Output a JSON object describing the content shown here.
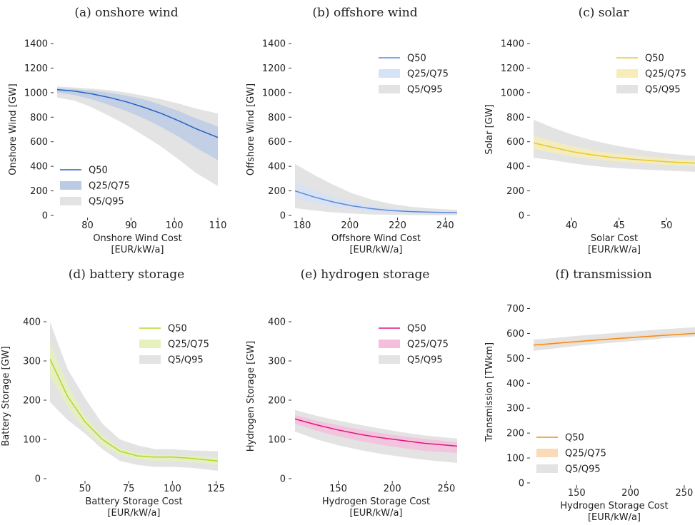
{
  "chart_data": [
    {
      "type": "area",
      "title": "(a) onshore wind",
      "xlabel": [
        "Onshore Wind Cost",
        "[EUR/kW/a]"
      ],
      "ylabel": "Onshore Wind [GW]",
      "xlim": [
        73,
        110
      ],
      "ylim": [
        0,
        1400
      ],
      "xticks": [
        80,
        90,
        100,
        110
      ],
      "yticks": [
        0,
        200,
        400,
        600,
        800,
        1000,
        1200,
        1400
      ],
      "legend_loc": "lower-left",
      "color": "#2461c6",
      "band_inner": "#bccbe4",
      "band_outer": "#e3e3e3",
      "x": [
        73,
        77,
        81,
        85,
        89,
        93,
        97,
        101,
        105,
        110
      ],
      "q5": [
        960,
        935,
        880,
        810,
        735,
        650,
        560,
        455,
        345,
        240
      ],
      "q25": [
        1000,
        980,
        945,
        900,
        850,
        790,
        720,
        640,
        550,
        450
      ],
      "q50": [
        1025,
        1012,
        990,
        960,
        925,
        880,
        830,
        770,
        705,
        635
      ],
      "q75": [
        1035,
        1028,
        1018,
        1000,
        975,
        945,
        900,
        850,
        790,
        725
      ],
      "q95": [
        1050,
        1042,
        1032,
        1020,
        1000,
        975,
        945,
        910,
        870,
        830
      ],
      "series": [
        {
          "name": "Q50"
        },
        {
          "name": "Q25/Q75"
        },
        {
          "name": "Q5/Q95"
        }
      ]
    },
    {
      "type": "area",
      "title": "(b) offshore wind",
      "xlabel": [
        "Offshore Wind Cost",
        "[EUR/kW/a]"
      ],
      "ylabel": "Offshore Wind [GW]",
      "xlim": [
        177,
        245
      ],
      "ylim": [
        0,
        1400
      ],
      "xticks": [
        180,
        200,
        220,
        240
      ],
      "yticks": [
        0,
        200,
        400,
        600,
        800,
        1000,
        1200,
        1400
      ],
      "legend_loc": "top-right",
      "color": "#5b8ad8",
      "band_inner": "#d6e2f5",
      "band_outer": "#e3e3e3",
      "x": [
        177,
        185,
        193,
        201,
        209,
        217,
        225,
        233,
        245
      ],
      "q5": [
        60,
        40,
        25,
        15,
        8,
        5,
        3,
        2,
        1
      ],
      "q25": [
        140,
        100,
        70,
        48,
        33,
        24,
        18,
        15,
        12
      ],
      "q50": [
        200,
        150,
        110,
        78,
        55,
        40,
        32,
        27,
        22
      ],
      "q75": [
        270,
        205,
        150,
        108,
        78,
        58,
        46,
        38,
        32
      ],
      "q95": [
        420,
        330,
        250,
        180,
        130,
        95,
        72,
        58,
        45
      ],
      "series": [
        {
          "name": "Q50"
        },
        {
          "name": "Q25/Q75"
        },
        {
          "name": "Q5/Q95"
        }
      ]
    },
    {
      "type": "area",
      "title": "(c) solar",
      "xlabel": [
        "Solar Cost",
        "[EUR/kW/a]"
      ],
      "ylabel": "Solar [GW]",
      "xlim": [
        36,
        53
      ],
      "ylim": [
        0,
        1400
      ],
      "xticks": [
        40,
        45,
        50
      ],
      "yticks": [
        0,
        200,
        400,
        600,
        800,
        1000,
        1200,
        1400
      ],
      "legend_loc": "top-right",
      "color": "#eac92a",
      "band_inner": "#f6edb8",
      "band_outer": "#e3e3e3",
      "x": [
        36,
        38,
        40,
        42,
        44,
        46,
        48,
        50,
        53
      ],
      "q5": [
        470,
        450,
        425,
        405,
        390,
        380,
        372,
        365,
        355
      ],
      "q25": [
        540,
        510,
        480,
        460,
        445,
        432,
        422,
        412,
        400
      ],
      "q50": [
        590,
        555,
        520,
        495,
        475,
        460,
        448,
        437,
        425
      ],
      "q75": [
        650,
        605,
        565,
        535,
        510,
        493,
        478,
        465,
        450
      ],
      "q95": [
        780,
        715,
        660,
        615,
        580,
        550,
        525,
        505,
        485
      ],
      "series": [
        {
          "name": "Q50"
        },
        {
          "name": "Q25/Q75"
        },
        {
          "name": "Q5/Q95"
        }
      ]
    },
    {
      "type": "area",
      "title": "(d) battery storage",
      "xlabel": [
        "Battery Storage Cost",
        "[EUR/kW/a]"
      ],
      "ylabel": "Battery Storage [GW]",
      "xlim": [
        30,
        126
      ],
      "ylim": [
        0,
        420
      ],
      "xticks": [
        50,
        75,
        100,
        125
      ],
      "yticks": [
        0,
        100,
        200,
        300,
        400
      ],
      "legend_loc": "top-right",
      "color": "#b2d829",
      "band_inner": "#e6f1bd",
      "band_outer": "#e3e3e3",
      "x": [
        30,
        40,
        50,
        60,
        70,
        80,
        90,
        100,
        110,
        126
      ],
      "q5": [
        195,
        150,
        115,
        75,
        45,
        35,
        30,
        30,
        28,
        20
      ],
      "q25": [
        260,
        185,
        125,
        85,
        60,
        50,
        45,
        45,
        42,
        35
      ],
      "q50": [
        305,
        210,
        145,
        100,
        70,
        58,
        55,
        55,
        52,
        45
      ],
      "q75": [
        345,
        240,
        160,
        110,
        78,
        65,
        60,
        60,
        58,
        55
      ],
      "q95": [
        400,
        280,
        205,
        140,
        100,
        85,
        75,
        75,
        72,
        70
      ],
      "series": [
        {
          "name": "Q50"
        },
        {
          "name": "Q25/Q75"
        },
        {
          "name": "Q5/Q95"
        }
      ]
    },
    {
      "type": "area",
      "title": "(e) hydrogen storage",
      "xlabel": [
        "Hydrogen Storage Cost",
        "[EUR/kW/a]"
      ],
      "ylabel": "Hydrogen Storage [GW]",
      "xlim": [
        110,
        260
      ],
      "ylim": [
        0,
        420
      ],
      "xticks": [
        150,
        200,
        250
      ],
      "yticks": [
        0,
        100,
        200,
        300,
        400
      ],
      "legend_loc": "top-right",
      "color": "#e0157d",
      "band_inner": "#f4bedc",
      "band_outer": "#e3e3e3",
      "x": [
        110,
        130,
        150,
        170,
        190,
        210,
        230,
        260
      ],
      "q5": [
        120,
        100,
        85,
        73,
        63,
        55,
        48,
        40
      ],
      "q25": [
        140,
        122,
        108,
        96,
        86,
        78,
        71,
        65
      ],
      "q50": [
        152,
        137,
        124,
        113,
        104,
        97,
        90,
        83
      ],
      "q75": [
        162,
        148,
        136,
        125,
        116,
        108,
        101,
        93
      ],
      "q95": [
        175,
        160,
        148,
        137,
        127,
        118,
        110,
        102
      ],
      "series": [
        {
          "name": "Q50"
        },
        {
          "name": "Q25/Q75"
        },
        {
          "name": "Q5/Q95"
        }
      ]
    },
    {
      "type": "area",
      "title": "(f) transmission",
      "xlabel": [
        "Hydrogen Storage Cost",
        "[EUR/kW/a]"
      ],
      "ylabel": "Transmission [TWkm]",
      "xlim": [
        110,
        260
      ],
      "ylim": [
        0,
        730
      ],
      "xticks": [
        150,
        200,
        250
      ],
      "yticks": [
        0,
        100,
        200,
        300,
        400,
        500,
        600,
        700
      ],
      "legend_loc": "lower-left",
      "color": "#f08a1c",
      "band_inner": "#fadbb8",
      "band_outer": "#e3e3e3",
      "x": [
        110,
        130,
        150,
        170,
        190,
        210,
        230,
        260
      ],
      "q5": [
        530,
        540,
        550,
        558,
        565,
        572,
        580,
        588
      ],
      "q25": [
        545,
        553,
        560,
        568,
        575,
        582,
        590,
        597
      ],
      "q50": [
        553,
        560,
        567,
        574,
        580,
        586,
        592,
        600
      ],
      "q75": [
        560,
        567,
        574,
        580,
        587,
        593,
        600,
        607
      ],
      "q95": [
        575,
        582,
        590,
        597,
        603,
        610,
        617,
        625
      ],
      "series": [
        {
          "name": "Q50"
        },
        {
          "name": "Q25/Q75"
        },
        {
          "name": "Q5/Q95"
        }
      ]
    }
  ]
}
